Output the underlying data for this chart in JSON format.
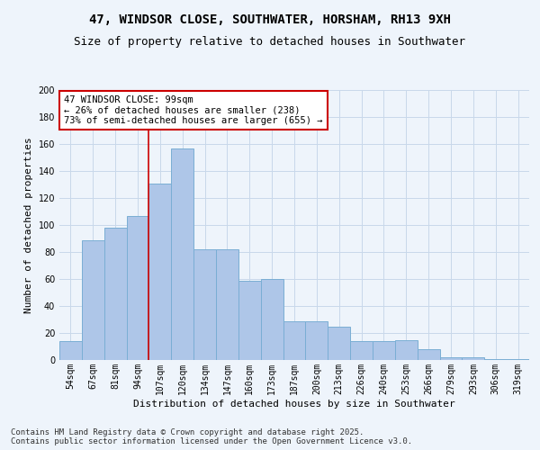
{
  "title_line1": "47, WINDSOR CLOSE, SOUTHWATER, HORSHAM, RH13 9XH",
  "title_line2": "Size of property relative to detached houses in Southwater",
  "xlabel": "Distribution of detached houses by size in Southwater",
  "ylabel": "Number of detached properties",
  "categories": [
    "54sqm",
    "67sqm",
    "81sqm",
    "94sqm",
    "107sqm",
    "120sqm",
    "134sqm",
    "147sqm",
    "160sqm",
    "173sqm",
    "187sqm",
    "200sqm",
    "213sqm",
    "226sqm",
    "240sqm",
    "253sqm",
    "266sqm",
    "279sqm",
    "293sqm",
    "306sqm",
    "319sqm"
  ],
  "values": [
    14,
    89,
    98,
    107,
    131,
    157,
    82,
    82,
    59,
    60,
    29,
    29,
    25,
    14,
    14,
    15,
    8,
    2,
    2,
    1,
    1
  ],
  "bar_color": "#aec6e8",
  "bar_edge_color": "#7aaed4",
  "vline_x": 3.5,
  "vline_color": "#cc0000",
  "annotation_text": "47 WINDSOR CLOSE: 99sqm\n← 26% of detached houses are smaller (238)\n73% of semi-detached houses are larger (655) →",
  "annotation_box_color": "#ffffff",
  "annotation_box_edge_color": "#cc0000",
  "ylim": [
    0,
    200
  ],
  "yticks": [
    0,
    20,
    40,
    60,
    80,
    100,
    120,
    140,
    160,
    180,
    200
  ],
  "grid_color": "#c8d8ea",
  "bg_color": "#eef4fb",
  "footer_line1": "Contains HM Land Registry data © Crown copyright and database right 2025.",
  "footer_line2": "Contains public sector information licensed under the Open Government Licence v3.0.",
  "title_fontsize": 10,
  "subtitle_fontsize": 9,
  "axis_label_fontsize": 8,
  "tick_fontsize": 7,
  "annotation_fontsize": 7.5,
  "footer_fontsize": 6.5
}
